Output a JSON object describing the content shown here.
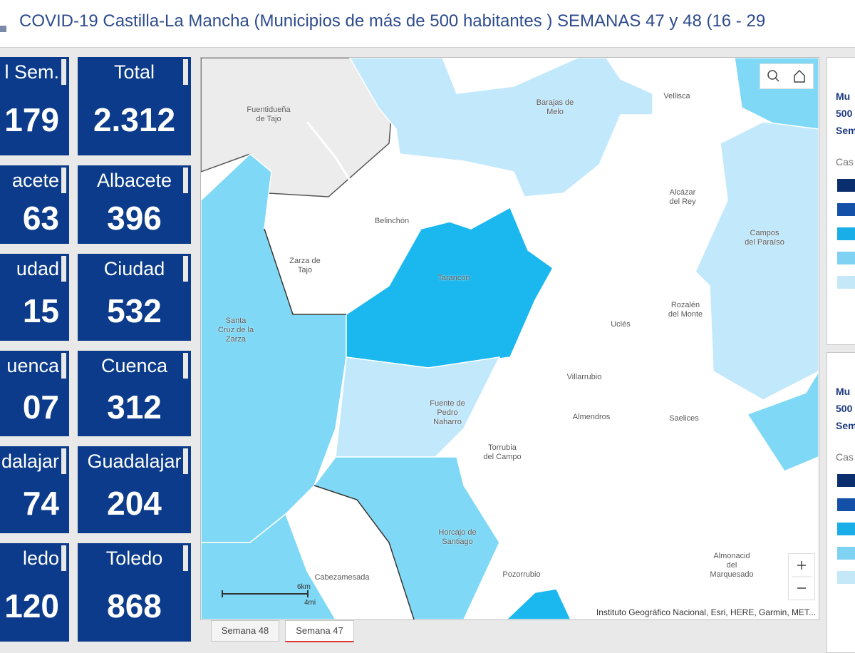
{
  "header": {
    "title": "COVID-19 Castilla-La Mancha (Municipios de más de 500 habitantes ) SEMANAS 47 y 48 (16 - 29"
  },
  "cards_left": [
    {
      "label": "l Sem.",
      "value": "179"
    },
    {
      "label": "acete",
      "value": "63"
    },
    {
      "label": "udad",
      "value": "15"
    },
    {
      "label": "uenca",
      "value": "07"
    },
    {
      "label": "dalajar",
      "value": "74"
    },
    {
      "label": "ledo",
      "value": "120"
    }
  ],
  "cards_right": [
    {
      "label": "Total",
      "value": "2.312"
    },
    {
      "label": "Albacete",
      "value": "396"
    },
    {
      "label": "Ciudad",
      "value": "532"
    },
    {
      "label": "Cuenca",
      "value": "312"
    },
    {
      "label": "Guadalajar",
      "value": "204"
    },
    {
      "label": "Toledo",
      "value": "868"
    }
  ],
  "map": {
    "labels": [
      [
        "Fuentidueña",
        "de Tajo"
      ],
      [
        "Barajas de",
        "Melo"
      ],
      [
        "Vellisca"
      ],
      [
        "Belinchón"
      ],
      [
        "Alcázar",
        "del Rey"
      ],
      [
        "Campos",
        "del Paraíso"
      ],
      [
        "Zarza de",
        "Tajo"
      ],
      [
        "Tarancón"
      ],
      [
        "Rozalén",
        "del Monte"
      ],
      [
        "Uclés"
      ],
      [
        "Santa",
        "Cruz de la",
        "Zarza"
      ],
      [
        "Villarrubio"
      ],
      [
        "Fuente de",
        "Pedro",
        "Naharro"
      ],
      [
        "Almendros"
      ],
      [
        "Saelices"
      ],
      [
        "Torrubia",
        "del Campo"
      ],
      [
        "Horcajo de",
        "Santiago"
      ],
      [
        "Pozorrubio"
      ],
      [
        "Cabezamesada"
      ],
      [
        "Almonacid",
        "del",
        "Marquesado"
      ]
    ],
    "scale_km": "6km",
    "scale_mi": "4mi",
    "attribution": "Instituto Geográfico Nacional, Esri, HERE, Garmin, MET..."
  },
  "tabs": [
    "Semana 48",
    "Semana 47"
  ],
  "legend_panels": [
    {
      "lines": [
        "Mu",
        "500",
        "Sem"
      ],
      "legend_title": "Cas"
    },
    {
      "lines": [
        "Mu",
        "500",
        "Sem"
      ],
      "legend_title": "Cas"
    }
  ]
}
